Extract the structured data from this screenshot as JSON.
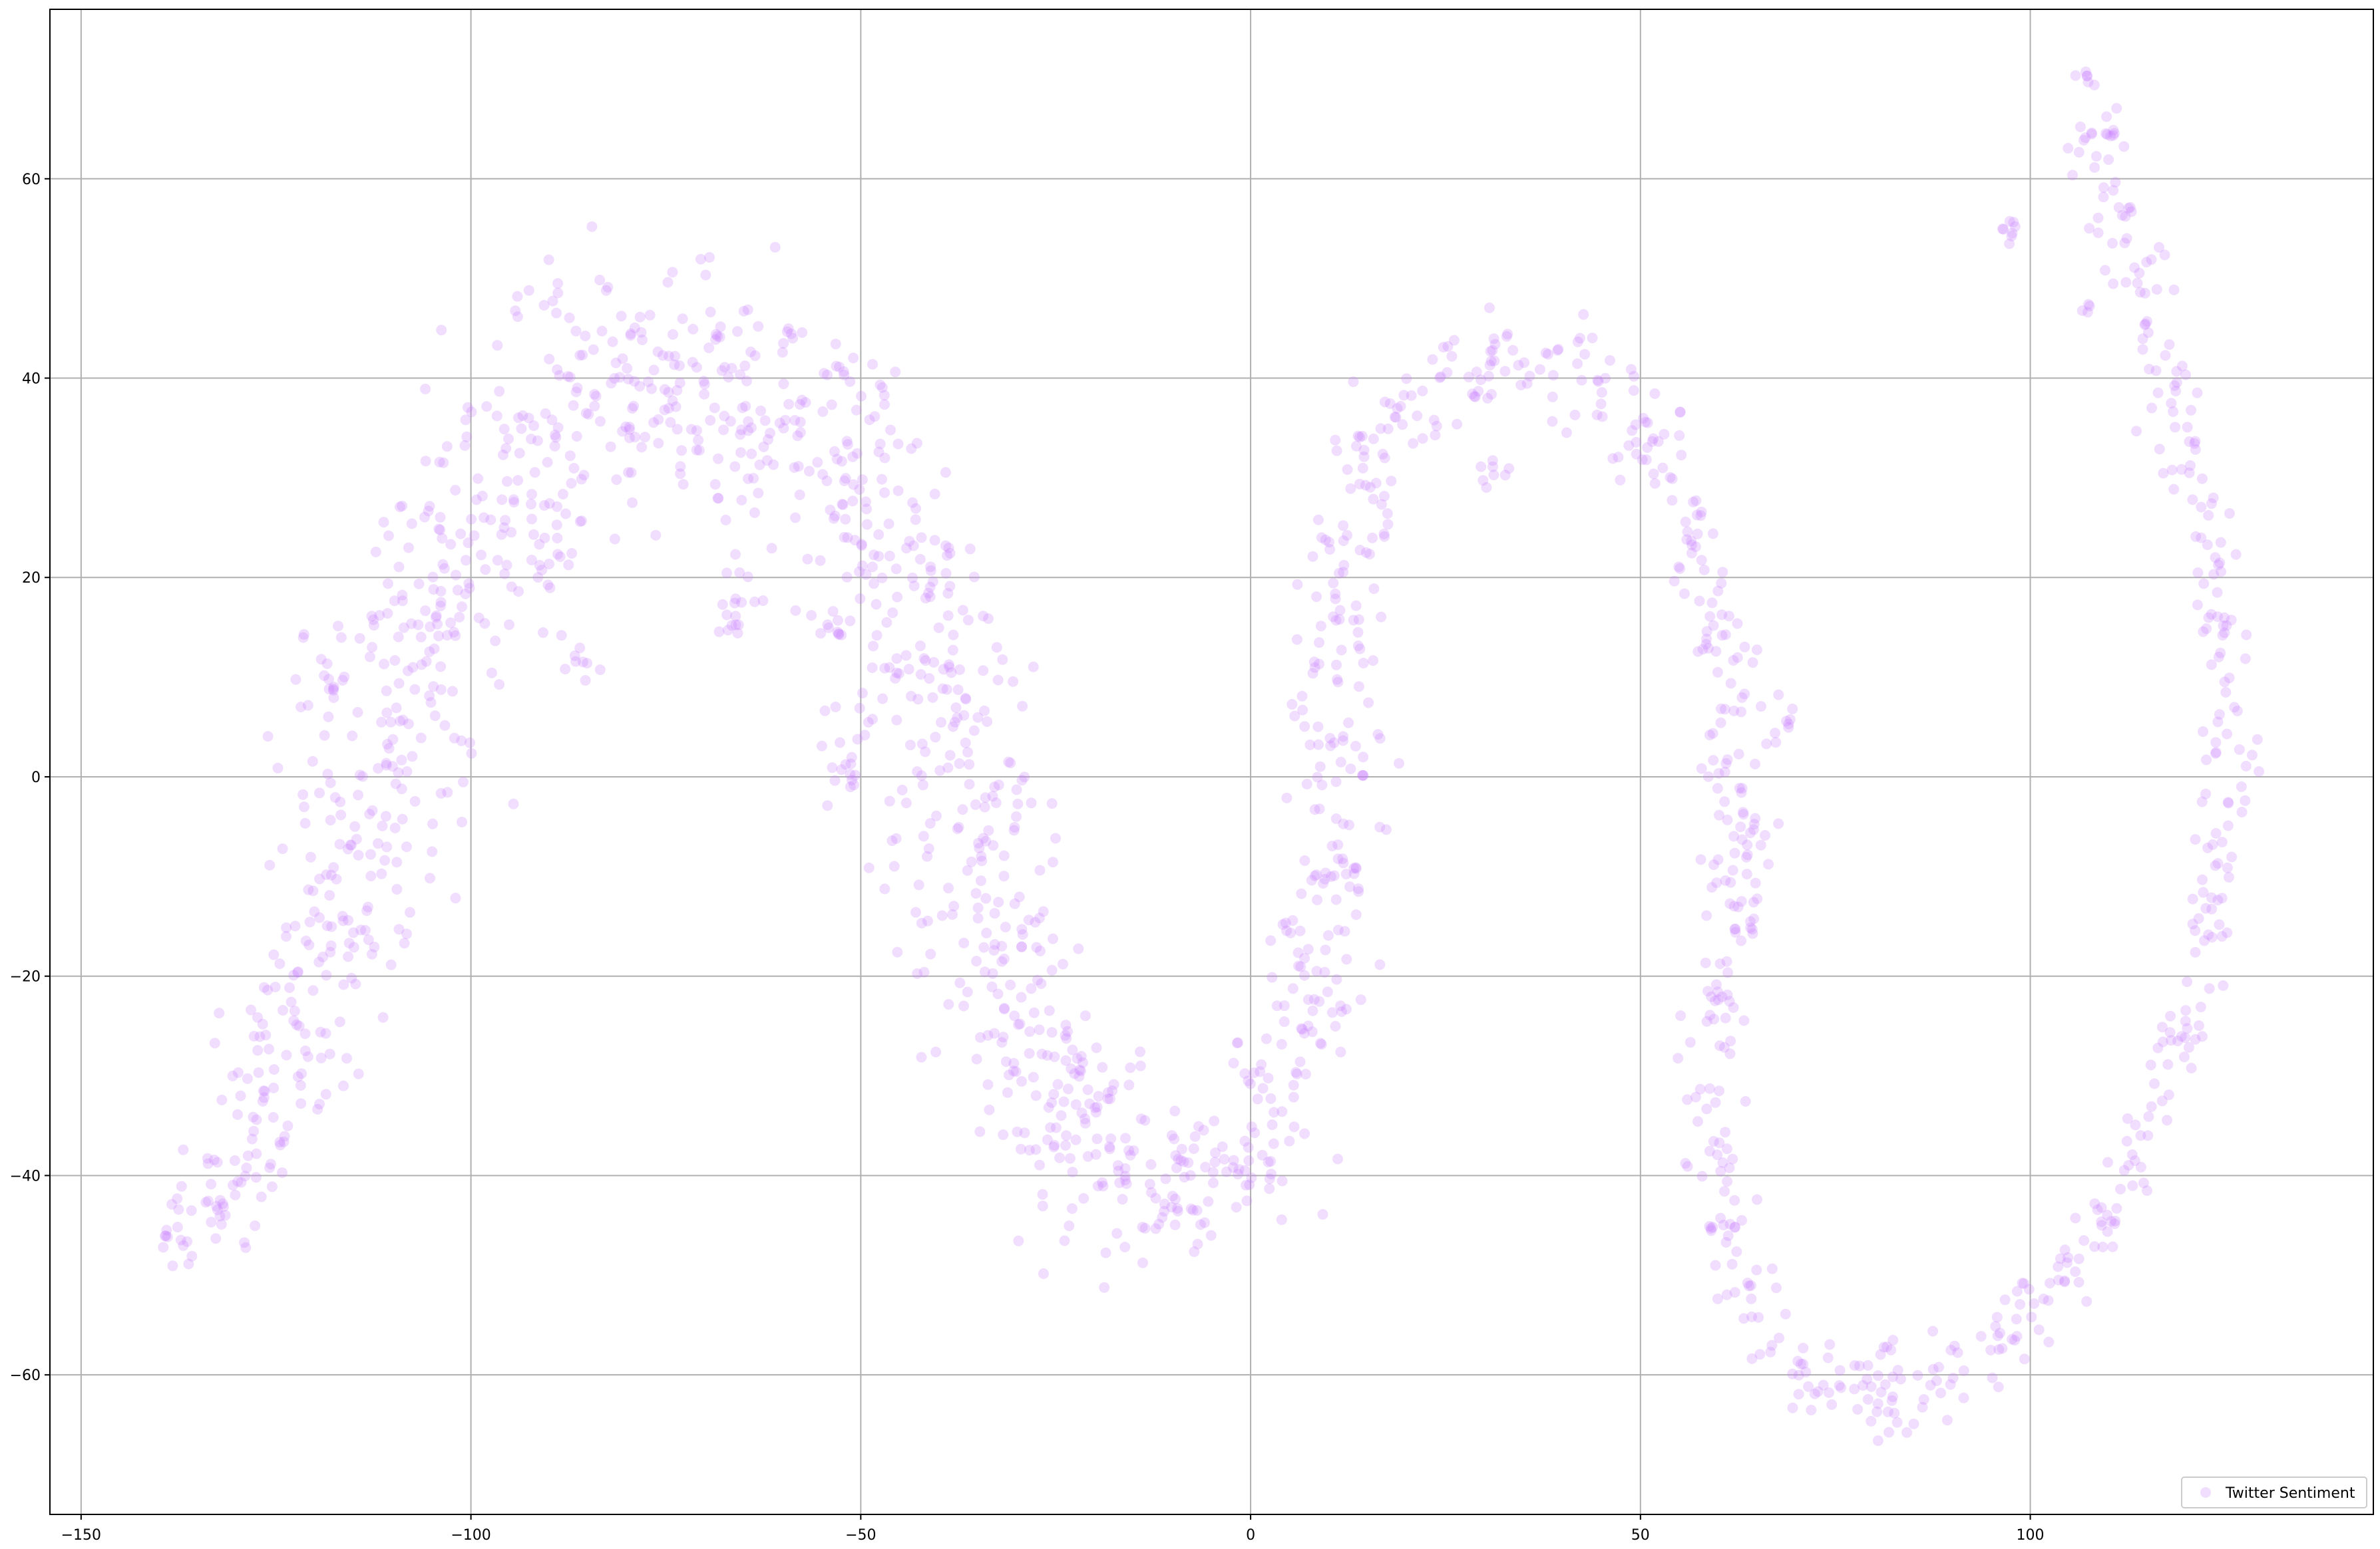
{
  "chart_data": {
    "type": "scatter",
    "title": "",
    "xlabel": "",
    "ylabel": "",
    "xlim": [
      -154,
      144
    ],
    "ylim": [
      -74,
      77
    ],
    "x_ticks": [
      -150,
      -100,
      -50,
      0,
      50,
      100
    ],
    "y_ticks": [
      -60,
      -40,
      -20,
      0,
      20,
      40,
      60
    ],
    "x_tick_labels": [
      "−150",
      "−100",
      "−50",
      "0",
      "50",
      "100"
    ],
    "y_tick_labels": [
      "−60",
      "−40",
      "−20",
      "0",
      "20",
      "40",
      "60"
    ],
    "grid": true,
    "legend_position": "lower-right",
    "series": [
      {
        "name": "Twitter Sentiment",
        "color": "#c77dff",
        "alpha": 0.25,
        "curve": [
          [
            -140,
            -47
          ],
          [
            -135,
            -45
          ],
          [
            -130,
            -41
          ],
          [
            -126,
            -34
          ],
          [
            -122,
            -25
          ],
          [
            -118,
            -14
          ],
          [
            -114,
            -3
          ],
          [
            -110,
            7
          ],
          [
            -106,
            16
          ],
          [
            -101,
            23
          ],
          [
            -95,
            29
          ],
          [
            -89,
            34
          ],
          [
            -82,
            38
          ],
          [
            -75,
            41
          ],
          [
            -68,
            41
          ],
          [
            -60,
            38
          ],
          [
            -53,
            31
          ],
          [
            -46,
            23
          ],
          [
            -41,
            12
          ],
          [
            -38,
            1
          ],
          [
            -36,
            -10
          ],
          [
            -32,
            -20
          ],
          [
            -28,
            -29
          ],
          [
            -23,
            -36
          ],
          [
            -17,
            -41
          ],
          [
            -10,
            -43
          ],
          [
            -4,
            -42
          ],
          [
            1,
            -33
          ],
          [
            6,
            -28
          ],
          [
            10,
            -20
          ],
          [
            12,
            -10
          ],
          [
            11,
            0
          ],
          [
            10,
            10
          ],
          [
            11,
            20
          ],
          [
            14,
            30
          ],
          [
            20,
            37
          ],
          [
            28,
            41
          ],
          [
            36,
            42
          ],
          [
            44,
            40
          ],
          [
            51,
            35
          ],
          [
            56,
            28
          ],
          [
            60,
            18
          ],
          [
            62,
            8
          ],
          [
            63,
            -2
          ],
          [
            62,
            -12
          ],
          [
            60,
            -22
          ],
          [
            59,
            -32
          ],
          [
            60,
            -42
          ],
          [
            63,
            -50
          ],
          [
            67,
            -57
          ],
          [
            73,
            -61
          ],
          [
            80,
            -64
          ],
          [
            87,
            -63
          ],
          [
            93,
            -59
          ],
          [
            98,
            -55
          ],
          [
            103,
            -50
          ],
          [
            108,
            -46
          ],
          [
            112,
            -42
          ],
          [
            116,
            -35
          ],
          [
            120,
            -25
          ],
          [
            123,
            -14
          ],
          [
            125,
            -3
          ],
          [
            125,
            8
          ],
          [
            124,
            18
          ],
          [
            122,
            28
          ],
          [
            119,
            37
          ],
          [
            116,
            45
          ],
          [
            113,
            53
          ],
          [
            110,
            60
          ],
          [
            106,
            65
          ]
        ],
        "width": [
          4,
          5,
          6,
          7,
          8,
          9,
          9,
          10,
          10,
          11,
          11,
          12,
          12,
          12,
          11,
          11,
          10,
          10,
          10,
          10,
          10,
          9,
          9,
          9,
          9,
          8,
          7,
          7,
          6,
          5,
          5,
          5,
          5,
          5,
          5,
          5,
          4,
          4,
          4,
          4,
          4,
          4,
          4,
          4,
          4,
          4,
          3,
          3,
          3,
          3,
          3,
          3,
          3,
          3,
          3,
          3,
          3,
          3,
          3,
          3,
          3,
          3,
          3,
          3,
          3,
          3,
          3,
          3,
          3,
          3
        ],
        "clusters": [
          [
            -118,
            10,
            1.0,
            8
          ],
          [
            -86,
            11,
            1.0,
            8
          ],
          [
            -65,
            18,
            2.0,
            18
          ],
          [
            -52,
            1,
            1.5,
            14
          ],
          [
            -53,
            15,
            1.2,
            8
          ],
          [
            -23,
            -30,
            1.5,
            10
          ],
          [
            5,
            -15,
            0.8,
            6
          ],
          [
            31,
            31,
            1.0,
            8
          ],
          [
            97,
            55,
            0.5,
            8
          ],
          [
            107,
            70,
            0.5,
            6
          ],
          [
            110,
            65,
            0.5,
            6
          ],
          [
            107,
            47,
            0.5,
            4
          ],
          [
            69,
            6,
            1.2,
            8
          ],
          [
            64,
            -6,
            1.5,
            10
          ],
          [
            78,
            -60,
            1.0,
            6
          ],
          [
            82,
            -58,
            1.0,
            6
          ]
        ]
      }
    ]
  },
  "legend": {
    "label": "Twitter Sentiment"
  }
}
